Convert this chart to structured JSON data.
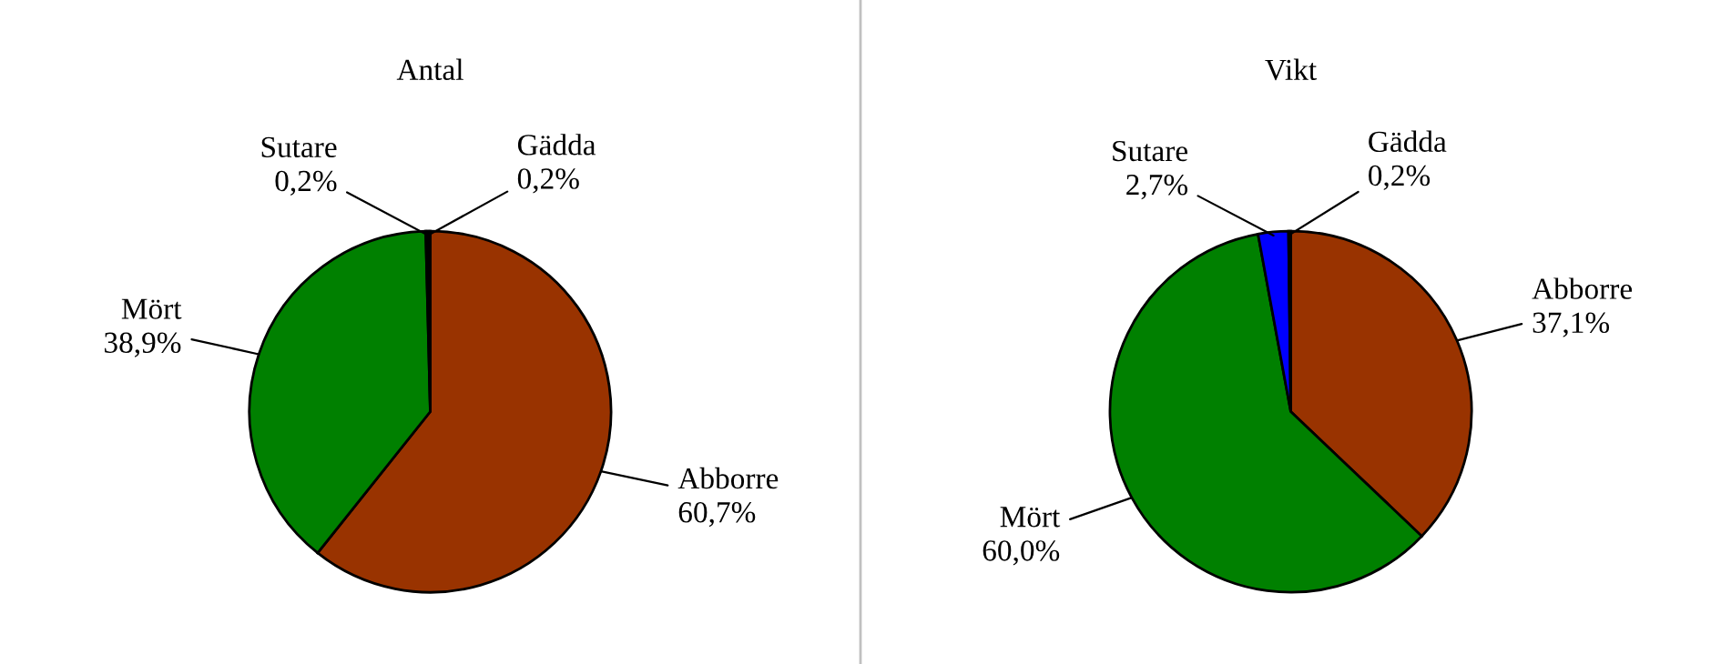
{
  "chart_data": [
    {
      "type": "pie",
      "title": "Antal",
      "categories": [
        "Abborre",
        "Mört",
        "Sutare",
        "Gädda"
      ],
      "values": [
        60.7,
        38.9,
        0.2,
        0.2
      ],
      "value_labels": [
        "60,7%",
        "38,9%",
        "0,2%",
        "0,2%"
      ],
      "colors": [
        "#993300",
        "#008000",
        "#0000ff",
        "#000080"
      ]
    },
    {
      "type": "pie",
      "title": "Vikt",
      "categories": [
        "Abborre",
        "Mört",
        "Sutare",
        "Gädda"
      ],
      "values": [
        37.1,
        60.0,
        2.7,
        0.2
      ],
      "value_labels": [
        "37,1%",
        "60,0%",
        "2,7%",
        "0,2%"
      ],
      "colors": [
        "#993300",
        "#008000",
        "#0000ff",
        "#000080"
      ]
    }
  ]
}
